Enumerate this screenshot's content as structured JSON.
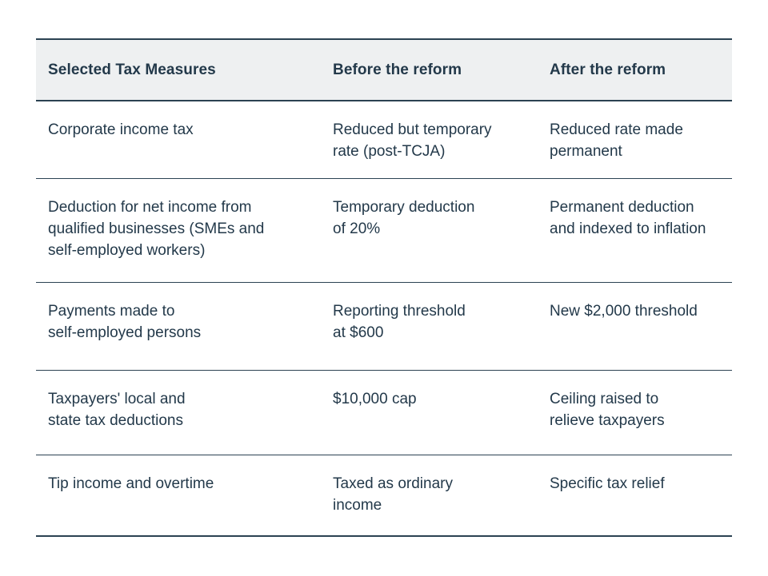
{
  "chart_data": {
    "type": "table",
    "columns": [
      "Selected Tax Measures",
      "Before the reform",
      "After the reform"
    ],
    "rows": [
      [
        "Corporate income tax",
        "Reduced but temporary\nrate (post-TCJA)",
        "Reduced rate made\npermanent"
      ],
      [
        "Deduction for net income from\nqualified businesses (SMEs and\nself-employed workers)",
        "Temporary deduction\nof 20%",
        "Permanent deduction\nand indexed to inflation"
      ],
      [
        "Payments made to\nself-employed persons",
        "Reporting threshold\nat $600",
        "New $2,000 threshold"
      ],
      [
        "Taxpayers' local and\nstate tax deductions",
        "$10,000 cap",
        "Ceiling raised to\nrelieve taxpayers"
      ],
      [
        "Tip income and overtime",
        "Taxed as ordinary\nincome",
        "Specific tax relief"
      ]
    ],
    "legend_position": "none",
    "grid": "horizontal-rules-only"
  },
  "colors": {
    "text": "#23394a",
    "border": "#2b4252",
    "header_bg": "#eef0f1",
    "page_bg": "#ffffff"
  }
}
